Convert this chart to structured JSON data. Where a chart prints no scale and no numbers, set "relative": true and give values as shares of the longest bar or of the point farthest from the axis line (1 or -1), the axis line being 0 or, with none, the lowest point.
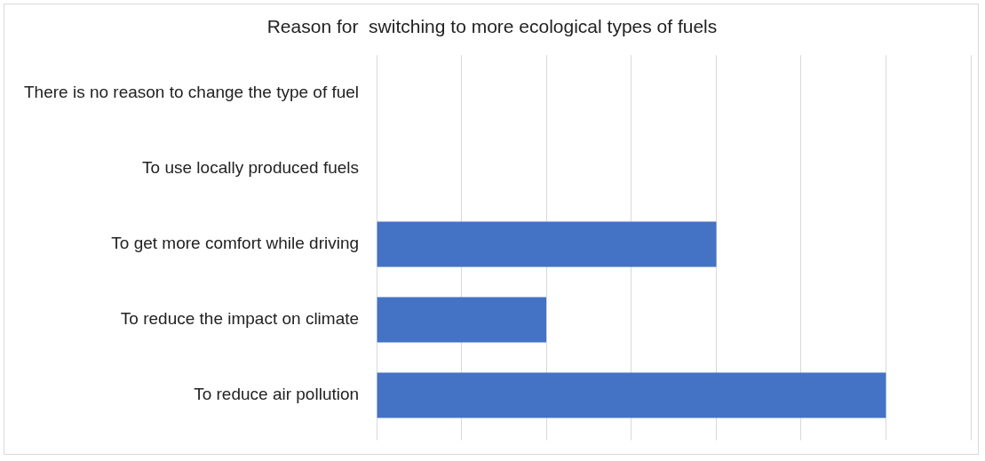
{
  "chart_data": {
    "type": "bar",
    "orientation": "horizontal",
    "relative": true,
    "title": "Reason for  switching to more ecological types of fuels",
    "categories": [
      "There is no reason to change the type of fuel",
      "To use locally produced fuels",
      "To get more comfort while driving",
      "To reduce the impact on climate",
      "To reduce air pollution"
    ],
    "values": [
      0,
      0,
      0.667,
      0.333,
      1
    ],
    "color": "#4472c4",
    "grid": "x"
  }
}
